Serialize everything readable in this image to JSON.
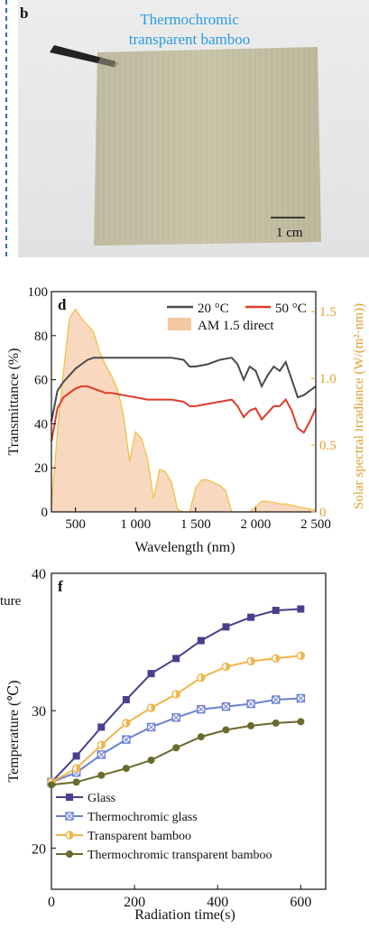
{
  "panel_b": {
    "letter": "b",
    "title_line1": "Thermochromic",
    "title_line2": "transparent bamboo",
    "scale_bar": "1 cm",
    "accent_color": "#2a9be0"
  },
  "chart_data": [
    {
      "panel": "d",
      "type": "line",
      "xlabel": "Wavelength (nm)",
      "ylabel": "Transmittance (%)",
      "y2label": "Solar spectral irradiance (W/(m²·nm))",
      "xlim": [
        300,
        2500
      ],
      "ylim": [
        0,
        100
      ],
      "y2lim": [
        0,
        1.65
      ],
      "xticks": [
        "500",
        "1 000",
        "1 500",
        "2 000",
        "2 500"
      ],
      "xtick_values": [
        500,
        1000,
        1500,
        2000,
        2500
      ],
      "yticks": [
        "0",
        "20",
        "40",
        "60",
        "80",
        "100"
      ],
      "y2ticks": [
        "0",
        "0.5",
        "1.0",
        "1.5"
      ],
      "y2tick_values": [
        0,
        0.5,
        1.0,
        1.5
      ],
      "legend_position": "top-right",
      "series": [
        {
          "name": "20 °C",
          "color": "#4a4a4a",
          "x": [
            300,
            350,
            400,
            450,
            500,
            550,
            600,
            650,
            700,
            750,
            800,
            900,
            1000,
            1100,
            1200,
            1300,
            1400,
            1450,
            1500,
            1600,
            1700,
            1800,
            1850,
            1900,
            1950,
            2000,
            2050,
            2100,
            2150,
            2200,
            2250,
            2300,
            2350,
            2400,
            2450,
            2500
          ],
          "y": [
            41,
            55,
            59,
            62,
            65,
            67,
            69,
            70,
            70,
            70,
            70,
            70,
            70,
            70,
            70,
            70,
            69,
            66,
            66,
            67,
            69,
            70,
            67,
            60,
            66,
            64,
            57,
            62,
            66,
            64,
            68,
            60,
            52,
            53,
            55,
            57
          ]
        },
        {
          "name": "50 °C",
          "color": "#e03a2a",
          "x": [
            300,
            350,
            400,
            450,
            500,
            550,
            600,
            650,
            700,
            750,
            800,
            900,
            1000,
            1100,
            1200,
            1300,
            1400,
            1450,
            1500,
            1600,
            1700,
            1800,
            1850,
            1900,
            1950,
            2000,
            2050,
            2100,
            2150,
            2200,
            2250,
            2300,
            2350,
            2400,
            2450,
            2500
          ],
          "y": [
            32,
            47,
            52,
            54,
            56,
            57,
            57,
            56,
            55,
            54,
            54,
            53,
            52,
            51,
            51,
            51,
            50,
            48,
            48,
            49,
            50,
            51,
            48,
            43,
            46,
            47,
            42,
            45,
            48,
            48,
            51,
            46,
            38,
            36,
            41,
            47
          ]
        },
        {
          "name": "AM 1.5 direct",
          "type": "area",
          "axis": "y2",
          "fill": "#f8d8bf",
          "stroke": "#f0c040",
          "x": [
            300,
            350,
            400,
            450,
            500,
            550,
            600,
            650,
            700,
            750,
            800,
            850,
            900,
            950,
            1000,
            1050,
            1100,
            1150,
            1200,
            1250,
            1300,
            1350,
            1400,
            1450,
            1500,
            1550,
            1600,
            1650,
            1700,
            1750,
            1800,
            1850,
            1900,
            1950,
            2000,
            2050,
            2100,
            2150,
            2200,
            2250,
            2300,
            2350,
            2400,
            2450,
            2500
          ],
          "y": [
            0.05,
            0.6,
            1.05,
            1.45,
            1.52,
            1.45,
            1.4,
            1.35,
            1.2,
            1.1,
            1.02,
            0.92,
            0.72,
            0.38,
            0.6,
            0.55,
            0.4,
            0.1,
            0.32,
            0.3,
            0.22,
            0.02,
            0.0,
            0.0,
            0.18,
            0.24,
            0.24,
            0.22,
            0.2,
            0.16,
            0.0,
            0.0,
            0.0,
            0.0,
            0.04,
            0.08,
            0.08,
            0.07,
            0.06,
            0.06,
            0.05,
            0.04,
            0.03,
            0.02,
            0.01
          ]
        }
      ]
    },
    {
      "panel": "f",
      "type": "line",
      "xlabel": "Radiation time(s)",
      "ylabel": "Temperature (℃)",
      "clipped_ylabel_fragment": "ture",
      "xlim": [
        0,
        660
      ],
      "ylim": [
        17,
        40
      ],
      "xticks": [
        "0",
        "200",
        "400",
        "600"
      ],
      "xtick_values": [
        0,
        200,
        400,
        600
      ],
      "yticks": [
        "20",
        "30",
        "40"
      ],
      "ytick_values": [
        20,
        30,
        40
      ],
      "legend_position": "bottom-right",
      "x": [
        0,
        60,
        120,
        180,
        240,
        300,
        360,
        420,
        480,
        540,
        600
      ],
      "series": [
        {
          "name": "Glass",
          "color": "#4a3f8c",
          "marker": "square",
          "values": [
            24.8,
            26.7,
            28.8,
            30.8,
            32.7,
            33.8,
            35.1,
            36.1,
            36.8,
            37.3,
            37.4
          ]
        },
        {
          "name": "Thermochromic glass",
          "color": "#6c7fd0",
          "marker": "square-x",
          "values": [
            24.8,
            25.5,
            26.8,
            27.9,
            28.8,
            29.5,
            30.1,
            30.3,
            30.5,
            30.8,
            30.9
          ]
        },
        {
          "name": "Transparent bamboo",
          "color": "#f0b44a",
          "marker": "half-circle",
          "values": [
            24.8,
            25.8,
            27.5,
            29.1,
            30.2,
            31.2,
            32.4,
            33.2,
            33.6,
            33.8,
            34.0
          ]
        },
        {
          "name": "Thermochromic transparent bamboo",
          "color": "#6b6a2e",
          "marker": "circle",
          "values": [
            24.6,
            24.8,
            25.3,
            25.8,
            26.4,
            27.3,
            28.1,
            28.6,
            28.9,
            29.1,
            29.2
          ]
        }
      ]
    }
  ],
  "panel_d_letter": "d",
  "panel_f_letter": "f"
}
